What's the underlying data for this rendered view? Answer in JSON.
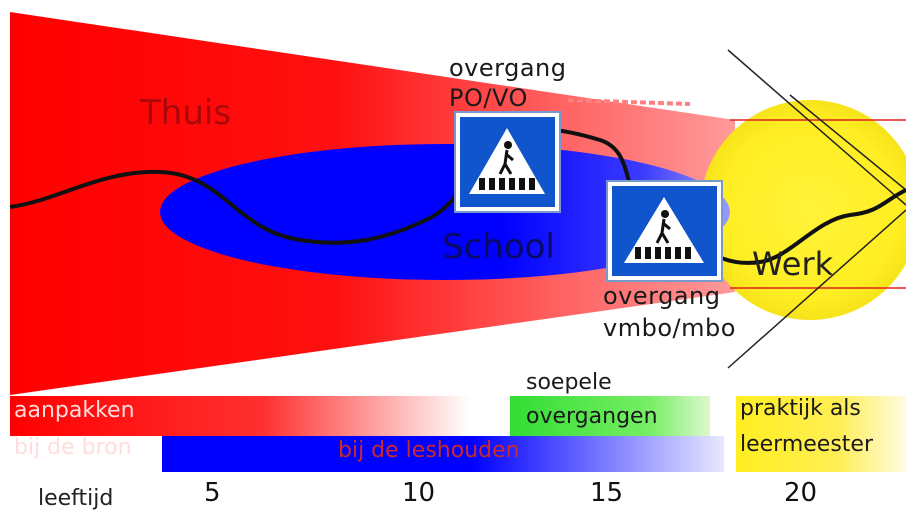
{
  "labels": {
    "home": "Thuis",
    "school": "School",
    "work": "Werk",
    "transition_po_vo": [
      "overgang",
      "PO/VO"
    ],
    "transition_vmbo_mbo": [
      "overgang",
      "vmbo/mbo"
    ]
  },
  "bars": {
    "source": [
      "aanpakken",
      "bij de bron"
    ],
    "keep_in_school": "bij de leshouden",
    "smooth_transitions": [
      "soepele",
      "overgangen"
    ],
    "practice_master": [
      "praktijk als",
      "leermeester"
    ]
  },
  "axis": {
    "label": "leeftijd",
    "ticks": [
      "5",
      "10",
      "15",
      "20"
    ]
  },
  "colors": {
    "red": "#ff0000",
    "blue": "#0000ff",
    "yellow": "#ffee22",
    "green": "#33dd33",
    "sign_blue": "#1155cc"
  },
  "icons": [
    "pedestrian-crossing-sign-icon",
    "pedestrian-crossing-sign-icon"
  ]
}
